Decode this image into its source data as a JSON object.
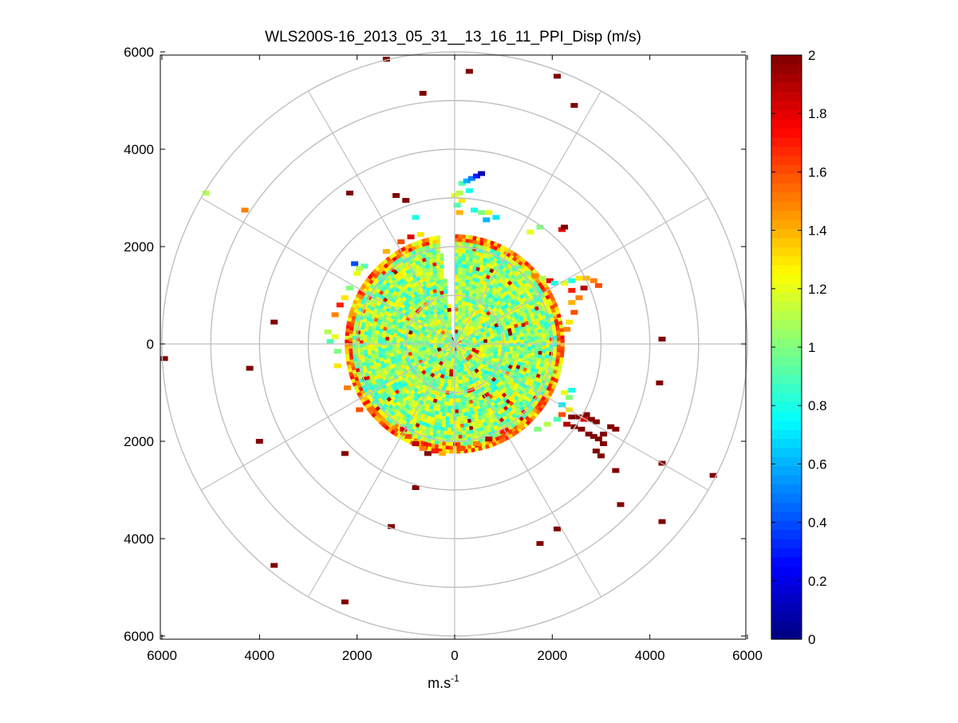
{
  "chart_data": {
    "type": "heatmap",
    "subtype": "polar-ppi",
    "title": "WLS200S-16_2013_05_31__13_16_11_PPI_Disp (m/s)",
    "xlabel": "m.s",
    "xlabel_superscript": "-1",
    "ylabel": "",
    "xlim": [
      -6000,
      6000
    ],
    "ylim": [
      -6000,
      6000
    ],
    "x_ticks": [
      -6000,
      -4000,
      -2000,
      0,
      2000,
      4000,
      6000
    ],
    "x_tick_labels": [
      "6000",
      "4000",
      "2000",
      "0",
      "2000",
      "4000",
      "6000"
    ],
    "y_ticks": [
      6000,
      4000,
      2000,
      0,
      -2000,
      -4000,
      -6000
    ],
    "y_tick_labels": [
      "6000",
      "4000",
      "2000",
      "0",
      "2000",
      "4000",
      "6000"
    ],
    "range_rings": [
      1000,
      2000,
      3000,
      4000,
      5000,
      6000
    ],
    "spoke_angles_deg": [
      0,
      30,
      60,
      90,
      120,
      150,
      180,
      210,
      240,
      270,
      300,
      330
    ],
    "colorbar": {
      "min": 0,
      "max": 2,
      "colormap": "jet",
      "ticks": [
        0,
        0.2,
        0.4,
        0.6,
        0.8,
        1,
        1.2,
        1.4,
        1.6,
        1.8,
        2
      ],
      "tick_labels": [
        "0",
        "0.2",
        "0.4",
        "0.6",
        "0.8",
        "1",
        "1.2",
        "1.4",
        "1.6",
        "1.8",
        "2"
      ]
    },
    "field": {
      "description": "dense scan within ~2300 m radius, values mostly 0.9-1.3",
      "core_radius_m": 2250,
      "missing_sector_deg": [
        -8,
        0
      ],
      "typical_value": 1.05,
      "value_spread": 0.25,
      "edge_value": 1.45
    },
    "points": [
      {
        "x": 2400,
        "y": -1500,
        "v": 2.0
      },
      {
        "x": 2550,
        "y": -1500,
        "v": 2.0
      },
      {
        "x": 2650,
        "y": -1550,
        "v": 1.8
      },
      {
        "x": 2700,
        "y": -1450,
        "v": 2.0
      },
      {
        "x": 2800,
        "y": -1550,
        "v": 2.0
      },
      {
        "x": 2900,
        "y": -1600,
        "v": 2.0
      },
      {
        "x": 2300,
        "y": -1650,
        "v": 1.9
      },
      {
        "x": 2450,
        "y": -1700,
        "v": 2.0
      },
      {
        "x": 2600,
        "y": -1750,
        "v": 2.0
      },
      {
        "x": 2750,
        "y": -1850,
        "v": 2.0
      },
      {
        "x": 2850,
        "y": -1900,
        "v": 2.0
      },
      {
        "x": 2950,
        "y": -1950,
        "v": 2.0
      },
      {
        "x": 3050,
        "y": -1850,
        "v": 2.0
      },
      {
        "x": 3200,
        "y": -1700,
        "v": 2.0
      },
      {
        "x": 3300,
        "y": -1750,
        "v": 2.0
      },
      {
        "x": 3050,
        "y": -2050,
        "v": 2.0
      },
      {
        "x": 2900,
        "y": -2200,
        "v": 2.0
      },
      {
        "x": 3000,
        "y": -2300,
        "v": 2.0
      },
      {
        "x": 2200,
        "y": -1450,
        "v": 1.6
      },
      {
        "x": 2350,
        "y": -1350,
        "v": 1.3
      },
      {
        "x": 2100,
        "y": -1550,
        "v": 0.9
      },
      {
        "x": 2200,
        "y": -1250,
        "v": 0.7
      },
      {
        "x": 2350,
        "y": -1100,
        "v": 1.0
      },
      {
        "x": 2250,
        "y": -1000,
        "v": 1.2
      },
      {
        "x": 2400,
        "y": -950,
        "v": 0.8
      },
      {
        "x": 1900,
        "y": -1650,
        "v": 1.1
      },
      {
        "x": 1700,
        "y": -1750,
        "v": 1.0
      },
      {
        "x": 150,
        "y": 3300,
        "v": 0.9
      },
      {
        "x": 250,
        "y": 3350,
        "v": 0.6
      },
      {
        "x": 350,
        "y": 3400,
        "v": 0.5
      },
      {
        "x": 450,
        "y": 3450,
        "v": 0.3
      },
      {
        "x": 550,
        "y": 3500,
        "v": 0.1
      },
      {
        "x": 300,
        "y": 3150,
        "v": 0.8
      },
      {
        "x": 100,
        "y": 3100,
        "v": 1.1
      },
      {
        "x": 0,
        "y": 3050,
        "v": 1.2
      },
      {
        "x": 150,
        "y": 2950,
        "v": 1.3
      },
      {
        "x": 50,
        "y": 2850,
        "v": 0.9
      },
      {
        "x": 100,
        "y": 2700,
        "v": 1.4
      },
      {
        "x": 400,
        "y": 2750,
        "v": 0.8
      },
      {
        "x": 550,
        "y": 2700,
        "v": 1.0
      },
      {
        "x": 700,
        "y": 2700,
        "v": 1.2
      },
      {
        "x": 850,
        "y": 2600,
        "v": 0.7
      },
      {
        "x": 650,
        "y": 2550,
        "v": 0.6
      },
      {
        "x": 1150,
        "y": 1600,
        "v": 1.3
      },
      {
        "x": 1250,
        "y": 1550,
        "v": 0.9
      },
      {
        "x": 1350,
        "y": 1500,
        "v": 1.2
      },
      {
        "x": 1500,
        "y": 1450,
        "v": 1.0
      },
      {
        "x": 1650,
        "y": 1400,
        "v": 1.5
      },
      {
        "x": 1800,
        "y": 1350,
        "v": 1.1
      },
      {
        "x": 1950,
        "y": 1300,
        "v": 1.8
      },
      {
        "x": 2050,
        "y": 1250,
        "v": 0.8
      },
      {
        "x": 2250,
        "y": 1250,
        "v": 1.2
      },
      {
        "x": 2400,
        "y": 1300,
        "v": 0.8
      },
      {
        "x": 2550,
        "y": 1350,
        "v": 1.3
      },
      {
        "x": 2700,
        "y": 1350,
        "v": 1.4
      },
      {
        "x": 2850,
        "y": 1300,
        "v": 1.5
      },
      {
        "x": 2950,
        "y": 1200,
        "v": 1.6
      },
      {
        "x": 2650,
        "y": 1150,
        "v": 1.9
      },
      {
        "x": 2400,
        "y": 1100,
        "v": 1.7
      },
      {
        "x": 2550,
        "y": 950,
        "v": 1.5
      },
      {
        "x": 2200,
        "y": 2350,
        "v": 1.8
      },
      {
        "x": 1750,
        "y": 2400,
        "v": 1.0
      },
      {
        "x": 1550,
        "y": 2300,
        "v": 1.2
      },
      {
        "x": 2400,
        "y": 850,
        "v": 1.4
      },
      {
        "x": 2450,
        "y": 650,
        "v": 1.6
      },
      {
        "x": 2350,
        "y": 450,
        "v": 1.3
      },
      {
        "x": 2300,
        "y": 300,
        "v": 1.5
      },
      {
        "x": -2600,
        "y": 250,
        "v": 1.1
      },
      {
        "x": -2550,
        "y": 50,
        "v": 0.9
      },
      {
        "x": -2450,
        "y": 150,
        "v": 1.2
      },
      {
        "x": -2400,
        "y": -150,
        "v": 1.0
      },
      {
        "x": -2450,
        "y": 600,
        "v": 1.5
      },
      {
        "x": -2350,
        "y": 800,
        "v": 1.7
      },
      {
        "x": -2250,
        "y": 950,
        "v": 1.3
      },
      {
        "x": -2150,
        "y": 1150,
        "v": 1.0
      },
      {
        "x": -2000,
        "y": 1450,
        "v": 1.2
      },
      {
        "x": -1850,
        "y": 1600,
        "v": 0.9
      },
      {
        "x": -2050,
        "y": 1650,
        "v": 0.4
      },
      {
        "x": -1950,
        "y": 1550,
        "v": 1.1
      },
      {
        "x": -1400,
        "y": 1900,
        "v": 1.4
      },
      {
        "x": -1100,
        "y": 2100,
        "v": 1.6
      },
      {
        "x": -900,
        "y": 2200,
        "v": 1.8
      },
      {
        "x": -700,
        "y": 2250,
        "v": 1.3
      },
      {
        "x": -800,
        "y": 2600,
        "v": 0.8
      },
      {
        "x": -1050,
        "y": -1750,
        "v": 1.8
      },
      {
        "x": -950,
        "y": -1900,
        "v": 1.6
      },
      {
        "x": -800,
        "y": -2050,
        "v": 1.9
      },
      {
        "x": -650,
        "y": -2150,
        "v": 1.5
      },
      {
        "x": -550,
        "y": -2250,
        "v": 2.0
      },
      {
        "x": -400,
        "y": -2200,
        "v": 1.7
      },
      {
        "x": -250,
        "y": -2250,
        "v": 1.4
      },
      {
        "x": 150,
        "y": -2150,
        "v": 1.6
      },
      {
        "x": 450,
        "y": -2050,
        "v": 1.5
      },
      {
        "x": 700,
        "y": -1950,
        "v": 1.9
      },
      {
        "x": 1000,
        "y": -1800,
        "v": 1.7
      },
      {
        "x": 1350,
        "y": -1700,
        "v": 1.4
      },
      {
        "x": -1950,
        "y": -1350,
        "v": 1.6
      },
      {
        "x": -2200,
        "y": -900,
        "v": 1.5
      },
      {
        "x": -2400,
        "y": -450,
        "v": 1.3
      },
      {
        "x": -1400,
        "y": 5850,
        "v": 2.0
      },
      {
        "x": -650,
        "y": 5150,
        "v": 2.0
      },
      {
        "x": 300,
        "y": 5600,
        "v": 2.0
      },
      {
        "x": 2100,
        "y": 5500,
        "v": 2.0
      },
      {
        "x": 2450,
        "y": 4900,
        "v": 2.0
      },
      {
        "x": -2150,
        "y": 3100,
        "v": 2.0
      },
      {
        "x": -1200,
        "y": 3050,
        "v": 2.0
      },
      {
        "x": -1000,
        "y": 2950,
        "v": 2.0
      },
      {
        "x": 2250,
        "y": 2400,
        "v": 2.0
      },
      {
        "x": 4250,
        "y": 100,
        "v": 2.0
      },
      {
        "x": 4200,
        "y": -800,
        "v": 2.0
      },
      {
        "x": 3300,
        "y": -2600,
        "v": 2.0
      },
      {
        "x": 4250,
        "y": -2450,
        "v": 2.0
      },
      {
        "x": 5300,
        "y": -2700,
        "v": 2.0
      },
      {
        "x": 3400,
        "y": -3300,
        "v": 2.0
      },
      {
        "x": 4250,
        "y": -3650,
        "v": 2.0
      },
      {
        "x": 2100,
        "y": -3800,
        "v": 2.0
      },
      {
        "x": 1750,
        "y": -4100,
        "v": 2.0
      },
      {
        "x": -5950,
        "y": -300,
        "v": 2.0
      },
      {
        "x": -4200,
        "y": -500,
        "v": 2.0
      },
      {
        "x": -3700,
        "y": 450,
        "v": 2.0
      },
      {
        "x": -4000,
        "y": -2000,
        "v": 2.0
      },
      {
        "x": -2250,
        "y": -2250,
        "v": 2.0
      },
      {
        "x": -800,
        "y": -2950,
        "v": 2.0
      },
      {
        "x": -1300,
        "y": -3750,
        "v": 2.0
      },
      {
        "x": -3700,
        "y": -4550,
        "v": 2.0
      },
      {
        "x": -2250,
        "y": -5300,
        "v": 2.1
      },
      {
        "x": -5100,
        "y": 3100,
        "v": 1.1
      },
      {
        "x": -4300,
        "y": 2750,
        "v": 1.5
      }
    ]
  }
}
